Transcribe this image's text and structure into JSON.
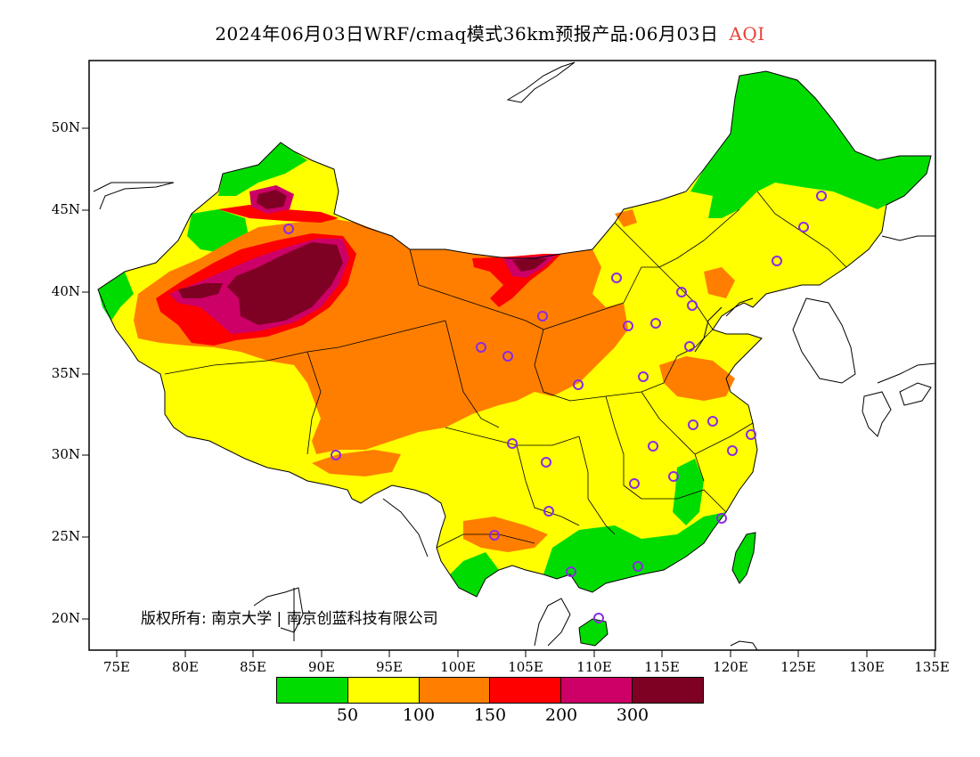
{
  "title": {
    "main": "2024年06月03日WRF/cmaq模式36km预报产品:06月03日",
    "variable": "AQI",
    "variable_color": "#e8433a"
  },
  "axes": {
    "latitudes": [
      "50N",
      "45N",
      "40N",
      "35N",
      "30N",
      "25N",
      "20N"
    ],
    "longitudes": [
      "75E",
      "80E",
      "85E",
      "90E",
      "95E",
      "100E",
      "105E",
      "110E",
      "115E",
      "120E",
      "125E",
      "130E",
      "135E"
    ]
  },
  "copyright": "版权所有: 南京大学 | 南京创蓝科技有限公司",
  "legend": {
    "colors": [
      "#00dc00",
      "#ffff00",
      "#ff7e00",
      "#ff0000",
      "#cc0066",
      "#7e0023"
    ],
    "labels": [
      "50",
      "100",
      "150",
      "200",
      "300"
    ]
  },
  "colors": {
    "good": "#00dc00",
    "moderate": "#ffff00",
    "usg": "#ff7e00",
    "unhealthy": "#ff0000",
    "very_unhealthy": "#cc0066",
    "hazardous": "#7e0023",
    "station_marker": "#8a2be2"
  }
}
